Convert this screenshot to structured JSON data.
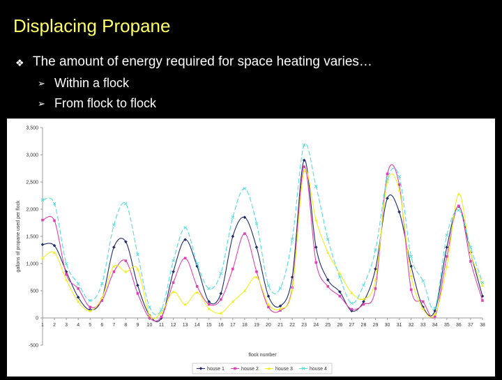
{
  "slide": {
    "title": "Displacing Propane",
    "bullet_main": "The amount of energy required for space heating varies…",
    "sub_bullets": [
      "Within a flock",
      "From flock to flock"
    ]
  },
  "chart_data": {
    "type": "line",
    "title": "",
    "xlabel": "flock number",
    "ylabel": "gallons of propane used per flock",
    "ylim": [
      -500,
      3500
    ],
    "yticks": [
      -500,
      0,
      500,
      1000,
      1500,
      2000,
      2500,
      3000,
      3500
    ],
    "ytick_labels": [
      "-500",
      "0",
      "500",
      "1,000",
      "1,500",
      "2,000",
      "2,500",
      "3,000",
      "3,500"
    ],
    "x": [
      1,
      2,
      3,
      4,
      5,
      6,
      7,
      8,
      9,
      10,
      11,
      12,
      13,
      14,
      15,
      16,
      17,
      18,
      19,
      20,
      21,
      22,
      23,
      24,
      25,
      26,
      27,
      28,
      29,
      30,
      31,
      32,
      33,
      34,
      35,
      36,
      37,
      38
    ],
    "legend_position": "bottom",
    "series": [
      {
        "name": "house 1",
        "color": "#1f2b6b",
        "marker": "diamond",
        "values": [
          1350,
          1330,
          850,
          380,
          150,
          350,
          1300,
          1400,
          600,
          50,
          0,
          850,
          1440,
          950,
          300,
          450,
          1500,
          1850,
          1300,
          400,
          220,
          750,
          2900,
          1300,
          700,
          480,
          130,
          300,
          900,
          2200,
          1950,
          950,
          200,
          130,
          1300,
          2050,
          1200,
          400
        ]
      },
      {
        "name": "house 2",
        "color": "#e040b0",
        "marker": "square",
        "values": [
          1800,
          1790,
          800,
          540,
          200,
          320,
          850,
          1050,
          450,
          0,
          20,
          650,
          1100,
          580,
          250,
          340,
          900,
          1550,
          850,
          200,
          140,
          560,
          2780,
          1020,
          580,
          400,
          160,
          250,
          540,
          2650,
          2450,
          520,
          300,
          30,
          1130,
          2060,
          1040,
          320
        ]
      },
      {
        "name": "house 3",
        "color": "#eeee22",
        "marker": "triangle",
        "values": [
          1100,
          1200,
          700,
          300,
          130,
          370,
          950,
          850,
          900,
          50,
          100,
          480,
          250,
          470,
          170,
          90,
          300,
          500,
          750,
          250,
          170,
          520,
          2700,
          1800,
          1200,
          820,
          460,
          350,
          700,
          2500,
          2350,
          780,
          170,
          70,
          950,
          2280,
          1200,
          600
        ]
      },
      {
        "name": "house 4",
        "color": "#55dddd",
        "marker": "x",
        "values": [
          2170,
          2100,
          1000,
          630,
          320,
          630,
          1710,
          2100,
          1170,
          200,
          150,
          1050,
          1660,
          1000,
          540,
          820,
          1850,
          2380,
          1740,
          600,
          550,
          1450,
          3180,
          2420,
          1450,
          750,
          270,
          600,
          1250,
          2560,
          2600,
          1130,
          680,
          180,
          1520,
          1980,
          1300,
          650
        ]
      }
    ]
  }
}
